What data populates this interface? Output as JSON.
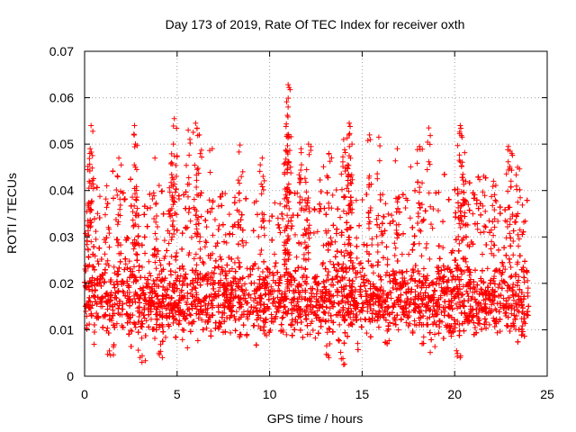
{
  "chart_data": {
    "type": "scatter",
    "title": "Day 173 of 2019, Rate Of TEC Index for receiver oxth",
    "xlabel": "GPS time / hours",
    "ylabel": "ROTI / TECUs",
    "xlim": [
      0,
      25
    ],
    "ylim": [
      0,
      0.07
    ],
    "x_ticks": [
      0,
      5,
      10,
      15,
      20,
      25
    ],
    "x_tick_labels": [
      "0",
      "5",
      "10",
      "15",
      "20",
      "25"
    ],
    "y_ticks": [
      0,
      0.01,
      0.02,
      0.03,
      0.04,
      0.05,
      0.06,
      0.07
    ],
    "y_tick_labels": [
      "0",
      "0.01",
      "0.02",
      "0.03",
      "0.04",
      "0.05",
      "0.06",
      "0.07"
    ],
    "grid": true,
    "marker": "plus",
    "marker_color": "#ff0000",
    "series": [
      {
        "name": "ROTI",
        "x_range": [
          0,
          24
        ],
        "bulk_range": [
          0.008,
          0.025
        ],
        "typical_max": 0.04,
        "peaks": [
          {
            "x": 0.35,
            "y": 0.054
          },
          {
            "x": 0.3,
            "y": 0.049
          },
          {
            "x": 0.25,
            "y": 0.042
          },
          {
            "x": 1.2,
            "y": 0.041
          },
          {
            "x": 1.85,
            "y": 0.047
          },
          {
            "x": 2.7,
            "y": 0.054
          },
          {
            "x": 2.75,
            "y": 0.05
          },
          {
            "x": 3.8,
            "y": 0.047
          },
          {
            "x": 4.7,
            "y": 0.046
          },
          {
            "x": 4.85,
            "y": 0.0555
          },
          {
            "x": 4.8,
            "y": 0.05
          },
          {
            "x": 5.6,
            "y": 0.053
          },
          {
            "x": 6.0,
            "y": 0.0545
          },
          {
            "x": 6.2,
            "y": 0.052
          },
          {
            "x": 6.9,
            "y": 0.049
          },
          {
            "x": 8.4,
            "y": 0.0498
          },
          {
            "x": 9.6,
            "y": 0.047
          },
          {
            "x": 10.9,
            "y": 0.0485
          },
          {
            "x": 11.0,
            "y": 0.0628
          },
          {
            "x": 11.05,
            "y": 0.0622
          },
          {
            "x": 11.0,
            "y": 0.058
          },
          {
            "x": 10.95,
            "y": 0.052
          },
          {
            "x": 11.7,
            "y": 0.049
          },
          {
            "x": 12.0,
            "y": 0.0445
          },
          {
            "x": 12.1,
            "y": 0.05
          },
          {
            "x": 13.2,
            "y": 0.048
          },
          {
            "x": 14.0,
            "y": 0.051
          },
          {
            "x": 14.3,
            "y": 0.0545
          },
          {
            "x": 14.35,
            "y": 0.0538
          },
          {
            "x": 14.3,
            "y": 0.052
          },
          {
            "x": 15.4,
            "y": 0.052
          },
          {
            "x": 15.9,
            "y": 0.0515
          },
          {
            "x": 16.9,
            "y": 0.049
          },
          {
            "x": 18.1,
            "y": 0.0495
          },
          {
            "x": 18.6,
            "y": 0.0535
          },
          {
            "x": 20.3,
            "y": 0.054
          },
          {
            "x": 20.4,
            "y": 0.0515
          },
          {
            "x": 20.6,
            "y": 0.042
          },
          {
            "x": 22.1,
            "y": 0.042
          },
          {
            "x": 22.9,
            "y": 0.0495
          },
          {
            "x": 23.0,
            "y": 0.0485
          },
          {
            "x": 23.4,
            "y": 0.045
          }
        ],
        "lows": [
          {
            "x": 3.1,
            "y": 0.003
          },
          {
            "x": 4.2,
            "y": 0.004
          },
          {
            "x": 13.2,
            "y": 0.004
          },
          {
            "x": 14.0,
            "y": 0.0025
          },
          {
            "x": 20.3,
            "y": 0.004
          },
          {
            "x": 1.4,
            "y": 0.0045
          }
        ]
      }
    ]
  }
}
